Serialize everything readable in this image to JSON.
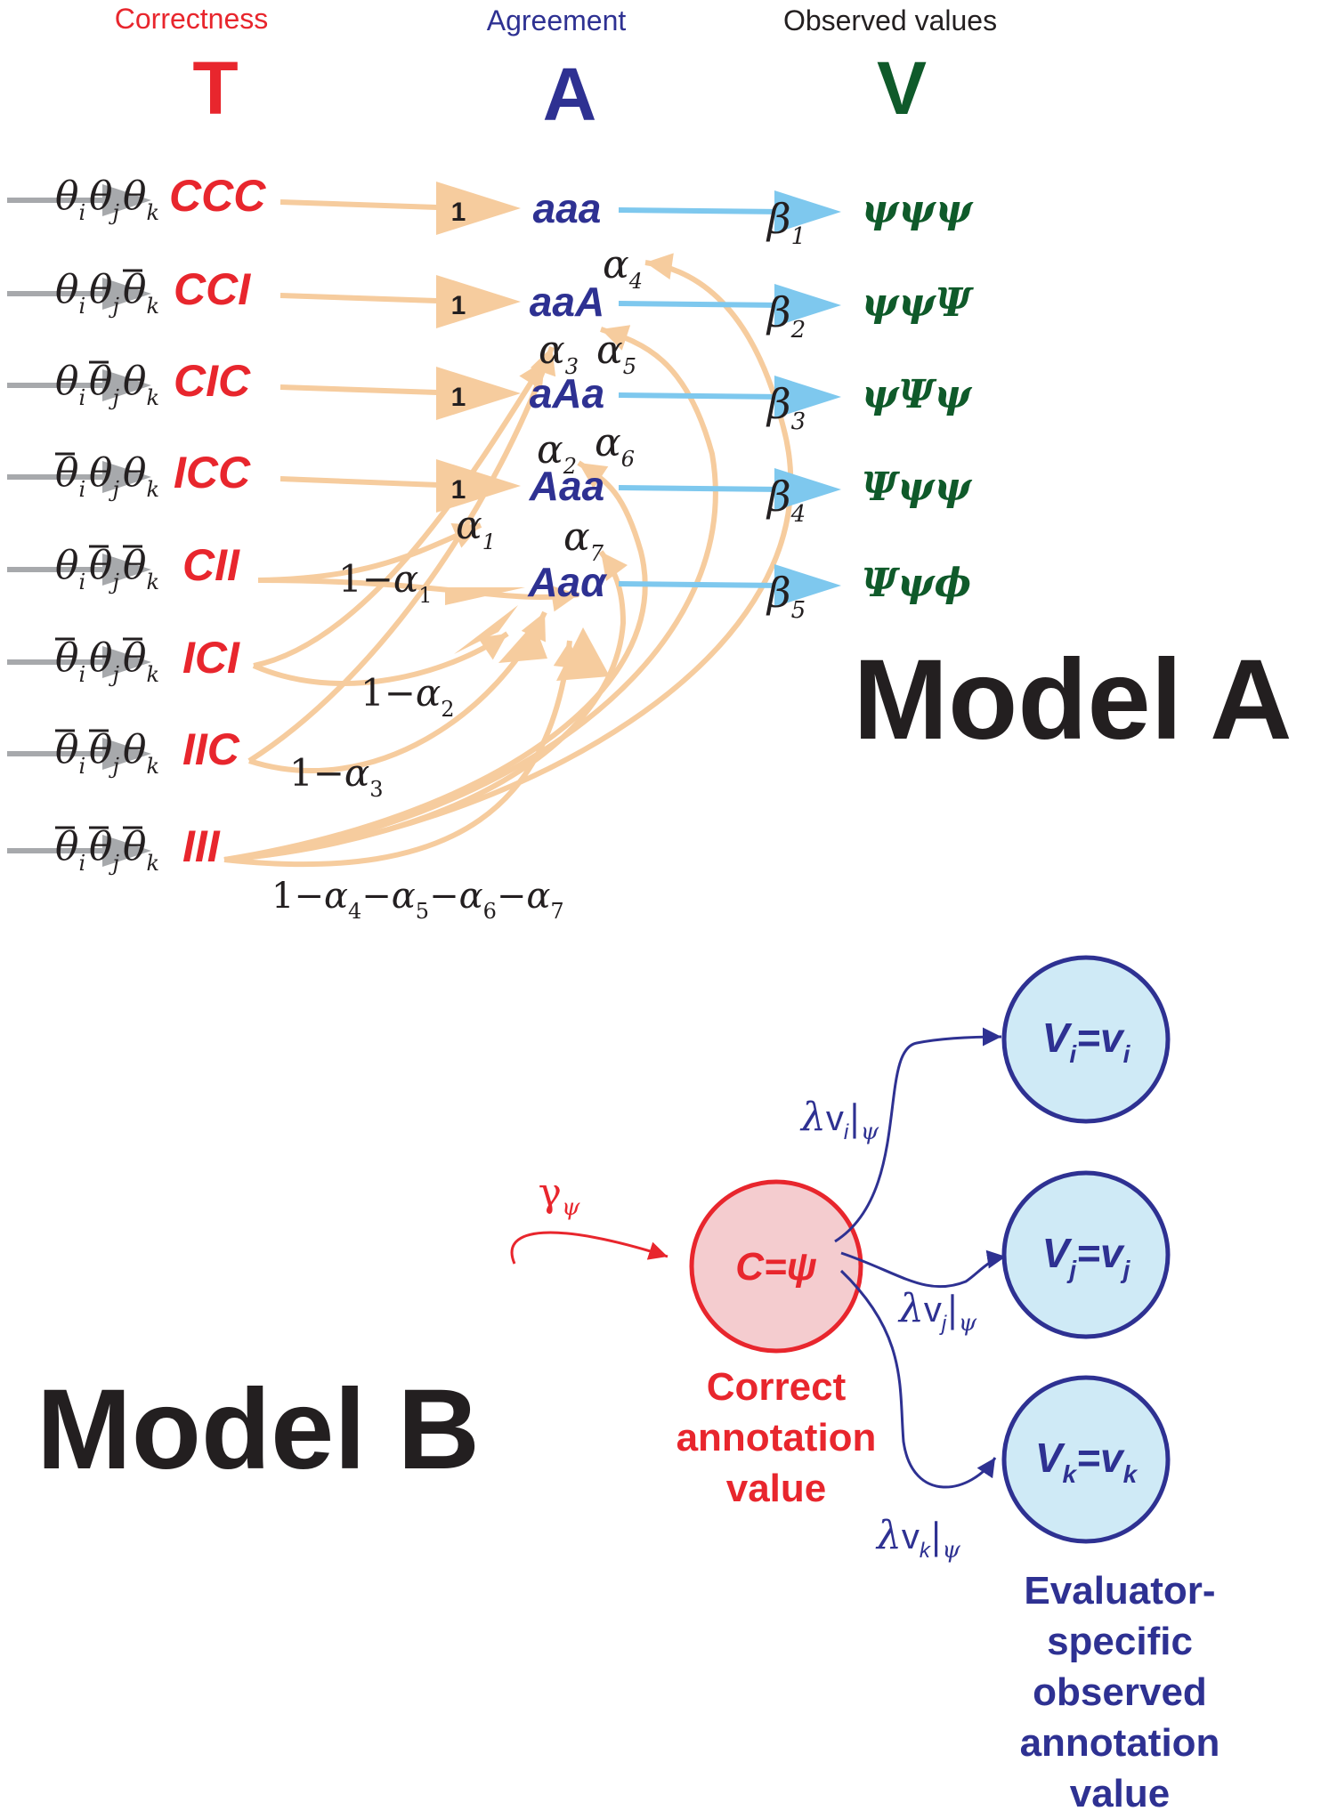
{
  "colors": {
    "red": "#e8262d",
    "blue": "#2e3192",
    "green": "#0f5a2a",
    "peach": "#f6cc9e",
    "sky": "#7ec8ee",
    "gray": "#a7a9ac",
    "circle_blue_fill": "#cfeaf6",
    "circle_red_fill": "#f4cccf",
    "text_dark": "#231f20"
  },
  "model_a": {
    "label": "Model A",
    "headers": {
      "T": {
        "caption": "Correctness",
        "letter": "T"
      },
      "A": {
        "caption": "Agreement",
        "letter": "A"
      },
      "V": {
        "caption": "Observed values",
        "letter": "V"
      }
    },
    "theta": {
      "base": "θ",
      "subs": [
        "i",
        "j",
        "k"
      ]
    },
    "rows": [
      {
        "code": "CCC",
        "negated": [
          false,
          false,
          false
        ]
      },
      {
        "code": "CCI",
        "negated": [
          false,
          false,
          true
        ]
      },
      {
        "code": "CIC",
        "negated": [
          false,
          true,
          false
        ]
      },
      {
        "code": "ICC",
        "negated": [
          true,
          false,
          false
        ]
      },
      {
        "code": "CII",
        "negated": [
          false,
          true,
          true
        ]
      },
      {
        "code": "ICI",
        "negated": [
          true,
          false,
          true
        ]
      },
      {
        "code": "IIC",
        "negated": [
          true,
          true,
          false
        ]
      },
      {
        "code": "III",
        "negated": [
          true,
          true,
          true
        ]
      }
    ],
    "agreement_states": [
      "aaa",
      "aaA",
      "aAa",
      "Aaa",
      "Aaα"
    ],
    "one_labels": [
      "1",
      "1",
      "1",
      "1"
    ],
    "beta": {
      "base": "β",
      "subs": [
        "1",
        "2",
        "3",
        "4",
        "5"
      ]
    },
    "observed_states": [
      "ψψψ",
      "ψψΨ",
      "ψΨψ",
      "Ψψψ",
      "Ψψϕ"
    ],
    "alpha": {
      "base": "α",
      "subs": [
        "1",
        "2",
        "3",
        "4",
        "5",
        "6",
        "7"
      ]
    },
    "complement_labels": {
      "one_minus": "1−",
      "last": {
        "prefix": "1−",
        "minus": "−",
        "subs": [
          "4",
          "5",
          "6",
          "7"
        ]
      }
    }
  },
  "model_b": {
    "label": "Model B",
    "gamma": {
      "base": "γ",
      "sub": "ψ"
    },
    "correct_node": "C=ψ",
    "correct_caption": [
      "Correct",
      "annotation",
      "value"
    ],
    "evaluator_nodes": [
      {
        "var": "V",
        "sub": "i",
        "eq": "=",
        "val": "v",
        "val_sub": "i"
      },
      {
        "var": "V",
        "sub": "j",
        "eq": "=",
        "val": "v",
        "val_sub": "j"
      },
      {
        "var": "V",
        "sub": "k",
        "eq": "=",
        "val": "v",
        "val_sub": "k"
      }
    ],
    "lambda": {
      "base": "λ",
      "v": "v",
      "subs": [
        "i",
        "j",
        "k"
      ],
      "bar": "|",
      "psi": "ψ"
    },
    "evaluator_caption": [
      "Evaluator-",
      "specific",
      "observed",
      "annotation",
      "value"
    ]
  }
}
